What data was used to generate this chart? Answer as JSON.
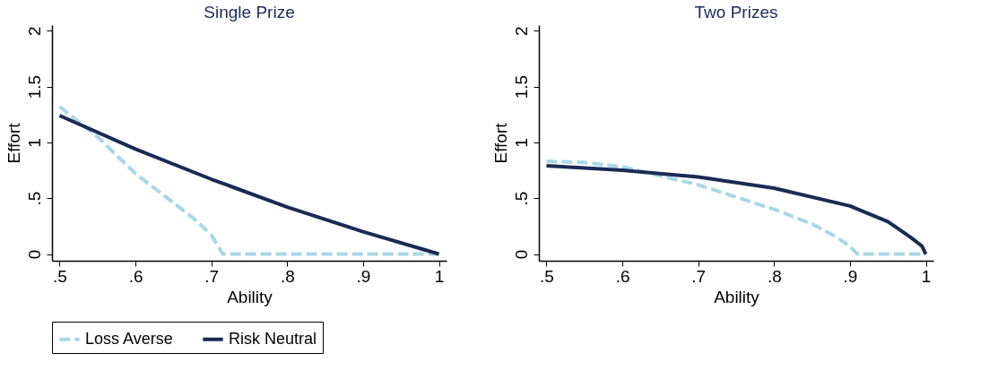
{
  "chart_data": [
    {
      "type": "line",
      "title": "Single Prize",
      "xlabel": "Ability",
      "ylabel": "Effort",
      "legend": "bottom",
      "xlim": [
        0.49,
        1.01
      ],
      "ylim": [
        -0.06,
        2.05
      ],
      "xticks": [
        {
          "value": 0.5,
          "label": ".5"
        },
        {
          "value": 0.6,
          "label": ".6"
        },
        {
          "value": 0.7,
          "label": ".7"
        },
        {
          "value": 0.8,
          "label": ".8"
        },
        {
          "value": 0.9,
          "label": ".9"
        },
        1
      ],
      "yticks": [
        0,
        {
          "value": 0.5,
          "label": ".5"
        },
        1,
        1.5,
        2
      ],
      "series": [
        {
          "name": "Loss Averse",
          "color": "#a8d8e6",
          "line_style": "dashed",
          "x": [
            0.5,
            0.55,
            0.6,
            0.65,
            0.68,
            0.7,
            0.71,
            0.715,
            1
          ],
          "values": [
            1.32,
            1.05,
            0.72,
            0.46,
            0.3,
            0.17,
            0.06,
            0,
            0
          ]
        },
        {
          "name": "Risk Neutral",
          "color": "#1a2a55",
          "line_style": "solid",
          "x": [
            0.5,
            0.6,
            0.7,
            0.8,
            0.9,
            1
          ],
          "values": [
            1.24,
            0.94,
            0.67,
            0.42,
            0.2,
            0
          ]
        }
      ]
    },
    {
      "type": "line",
      "title": "Two Prizes",
      "xlabel": "Ability",
      "ylabel": "Effort",
      "legend": "bottom",
      "xlim": [
        0.49,
        1.01
      ],
      "ylim": [
        -0.06,
        2.05
      ],
      "xticks": [
        {
          "value": 0.5,
          "label": ".5"
        },
        {
          "value": 0.6,
          "label": ".6"
        },
        {
          "value": 0.7,
          "label": ".7"
        },
        {
          "value": 0.8,
          "label": ".8"
        },
        {
          "value": 0.9,
          "label": ".9"
        },
        1
      ],
      "yticks": [
        0,
        {
          "value": 0.5,
          "label": ".5"
        },
        1,
        1.5,
        2
      ],
      "series": [
        {
          "name": "Loss Averse",
          "color": "#a8d8e6",
          "line_style": "dashed",
          "x": [
            0.5,
            0.55,
            0.6,
            0.65,
            0.7,
            0.75,
            0.8,
            0.85,
            0.88,
            0.9,
            0.91,
            1
          ],
          "values": [
            0.83,
            0.82,
            0.78,
            0.7,
            0.62,
            0.51,
            0.4,
            0.27,
            0.16,
            0.07,
            0,
            0
          ]
        },
        {
          "name": "Risk Neutral",
          "color": "#1a2a55",
          "line_style": "solid",
          "x": [
            0.5,
            0.6,
            0.7,
            0.8,
            0.9,
            0.95,
            0.98,
            0.995,
            1
          ],
          "values": [
            0.79,
            0.75,
            0.69,
            0.59,
            0.43,
            0.29,
            0.15,
            0.07,
            0
          ]
        }
      ]
    }
  ]
}
